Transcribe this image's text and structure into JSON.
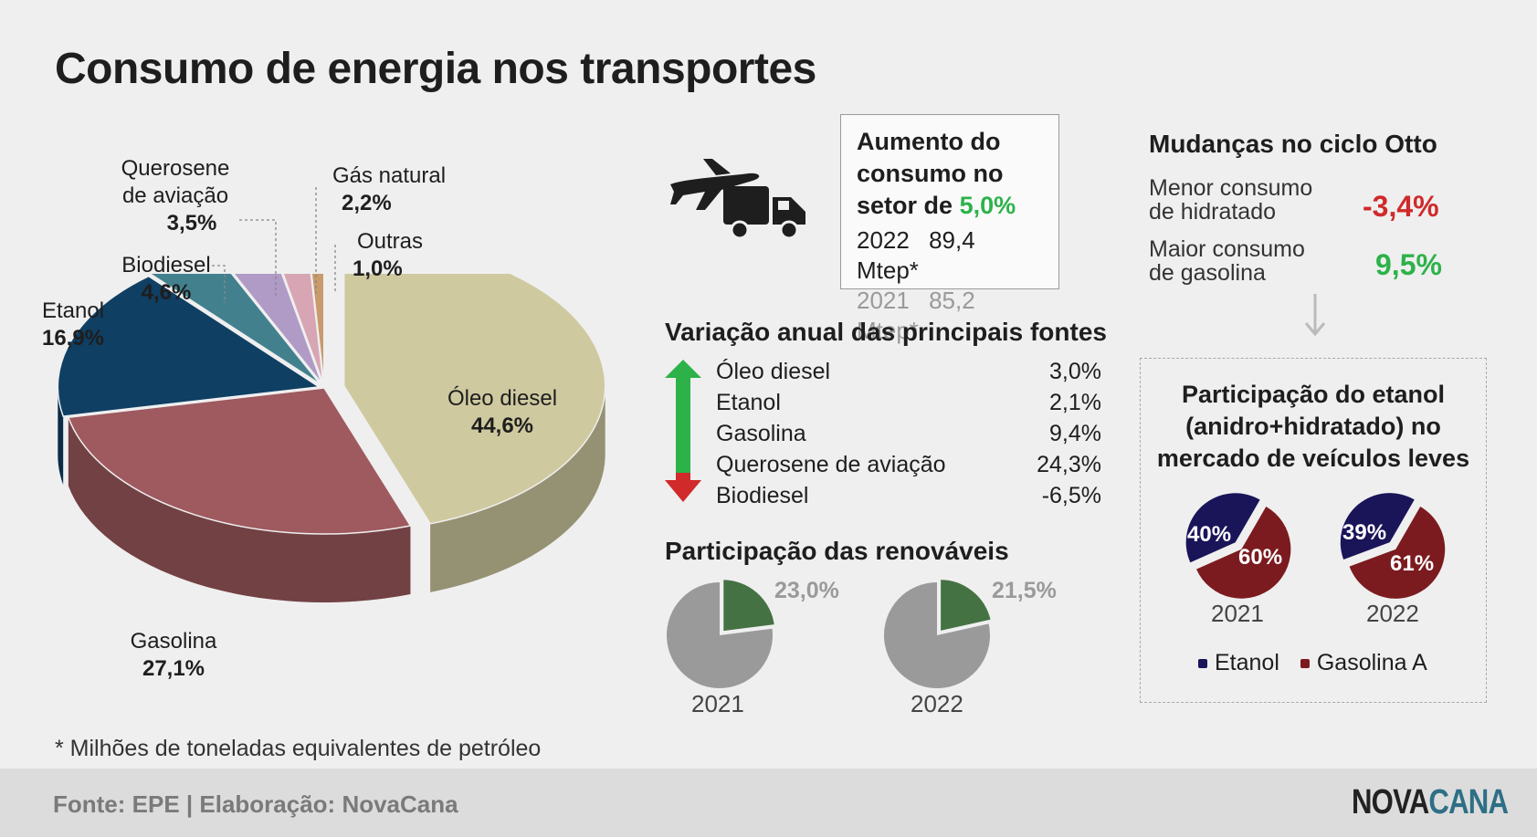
{
  "title": "Consumo de energia nos transportes",
  "chart_data": [
    {
      "type": "pie",
      "categories": [
        "Óleo diesel",
        "Gasolina",
        "Etanol",
        "Biodiesel",
        "Querosene de aviação",
        "Gás natural",
        "Outras"
      ],
      "values": [
        44.6,
        27.1,
        16.9,
        4.6,
        3.5,
        2.2,
        1.0
      ],
      "labels": [
        "44,6%",
        "27,1%",
        "16,9%",
        "4,6%",
        "3,5%",
        "2,2%",
        "1,0%"
      ],
      "colors": [
        "#cfc9a0",
        "#9f5a5f",
        "#0f3f63",
        "#43808e",
        "#b09ac6",
        "#d7a5b4",
        "#c99a6b"
      ]
    },
    {
      "type": "pie",
      "title": "Participação das renováveis",
      "categories": [
        "2021",
        "2022"
      ],
      "values": [
        23.0,
        21.5
      ],
      "labels": [
        "23,0%",
        "21,5%"
      ],
      "colors": [
        "#457243",
        "#9a9a9a"
      ]
    },
    {
      "type": "pie",
      "title": "Participação do etanol (anidro+hidratado) no mercado de veículos leves",
      "categories": [
        "2021",
        "2022"
      ],
      "series": [
        {
          "name": "Etanol",
          "values": [
            40,
            39
          ],
          "labels": [
            "40%",
            "39%"
          ]
        },
        {
          "name": "Gasolina A",
          "values": [
            60,
            61
          ],
          "labels": [
            "60%",
            "61%"
          ]
        }
      ],
      "colors": [
        "#1a1459",
        "#7b1b1f"
      ]
    },
    {
      "type": "table",
      "title": "Variação anual das principais fontes",
      "rows": [
        {
          "label": "Óleo diesel",
          "value": "3,0%"
        },
        {
          "label": "Etanol",
          "value": "2,1%"
        },
        {
          "label": "Gasolina",
          "value": "9,4%"
        },
        {
          "label": "Querosene de aviação",
          "value": "24,3%"
        },
        {
          "label": "Biodiesel",
          "value": "-6,5%"
        }
      ]
    }
  ],
  "pie_labels": {
    "diesel": {
      "name": "Óleo diesel",
      "pct": "44,6%"
    },
    "gasolina": {
      "name": "Gasolina",
      "pct": "27,1%"
    },
    "etanol": {
      "name": "Etanol",
      "pct": "16,9%"
    },
    "biodiesel": {
      "name": "Biodiesel",
      "pct": "4,6%"
    },
    "querosene": {
      "name1": "Querosene",
      "name2": "de aviação",
      "pct": "3,5%"
    },
    "gas": {
      "name": "Gás natural",
      "pct": "2,2%"
    },
    "outras": {
      "name": "Outras",
      "pct": "1,0%"
    }
  },
  "aumento": {
    "line1": "Aumento do",
    "line2": "consumo no",
    "line3": "setor de",
    "pct": "5,0%",
    "rows": [
      {
        "year": "2022",
        "value": "89,4 Mtep*"
      },
      {
        "year": "2021",
        "value": "85,2 Mtep*"
      }
    ]
  },
  "variacao": {
    "title": "Variação anual das principais fontes",
    "rows": [
      {
        "label": "Óleo diesel",
        "value": "3,0%"
      },
      {
        "label": "Etanol",
        "value": "2,1%"
      },
      {
        "label": "Gasolina",
        "value": "9,4%"
      },
      {
        "label": "Querosene de aviação",
        "value": "24,3%"
      },
      {
        "label": "Biodiesel",
        "value": "-6,5%"
      }
    ]
  },
  "renovaveis": {
    "title": "Participação das renováveis",
    "years": [
      {
        "year": "2021",
        "pct": "23,0%"
      },
      {
        "year": "2022",
        "pct": "21,5%"
      }
    ]
  },
  "otto": {
    "title": "Mudanças no ciclo Otto",
    "rows": [
      {
        "line1": "Menor consumo",
        "line2": "de hidratado",
        "value": "-3,4%"
      },
      {
        "line1": "Maior consumo",
        "line2": "de gasolina",
        "value": "9,5%"
      }
    ]
  },
  "etanol_box": {
    "line1": "Participação do etanol",
    "line2": "(anidro+hidratado) no",
    "line3": "mercado de veículos leves",
    "pies": [
      {
        "year": "2021",
        "etanol": "40%",
        "gasolina": "60%"
      },
      {
        "year": "2022",
        "etanol": "39%",
        "gasolina": "61%"
      }
    ],
    "legend": [
      "Etanol",
      "Gasolina A"
    ]
  },
  "footnote": "* Milhões de toneladas equivalentes de petróleo",
  "footer": {
    "source": "Fonte: EPE | Elaboração: NovaCana",
    "logo_a": "NOVA",
    "logo_b": "CANA"
  },
  "colors": {
    "green": "#2db24a",
    "red": "#d02a2a",
    "dark_green": "#457243",
    "navy": "#1a1459",
    "maroon": "#7b1b1f"
  },
  "icons": [
    "airplane-icon",
    "truck-icon",
    "arrow-down-icon",
    "green-up-arrow-icon",
    "red-down-arrow-icon"
  ]
}
